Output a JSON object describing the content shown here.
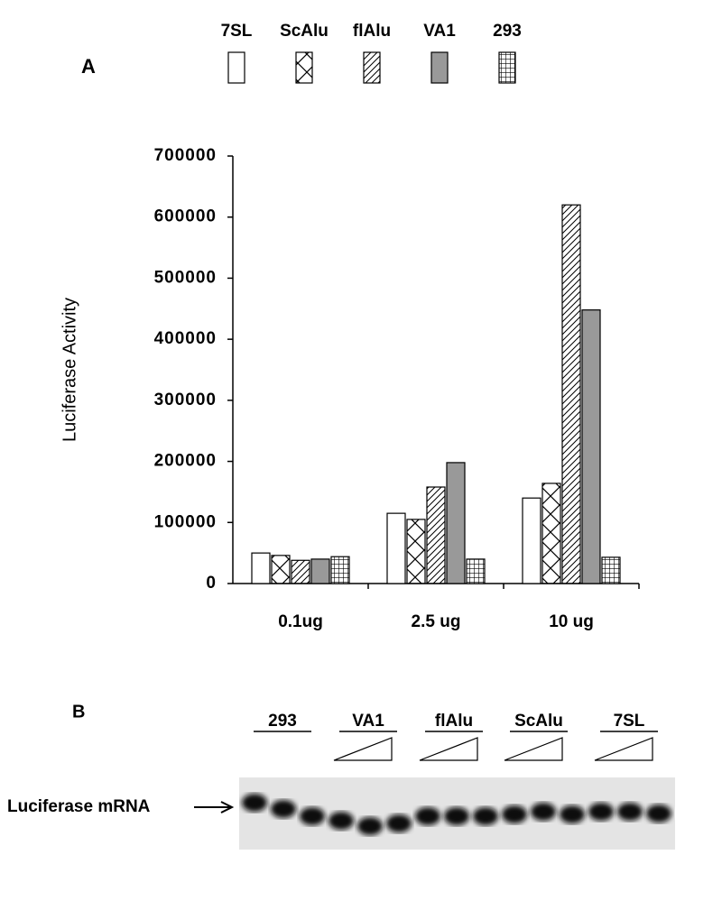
{
  "chart_data": {
    "type": "bar",
    "panel_label": "A",
    "ylabel": "Luciferase Activity",
    "categories": [
      "0.1ug",
      "2.5 ug",
      "10 ug"
    ],
    "series": [
      {
        "name": "7SL",
        "color": "#ffffff",
        "pattern": "none",
        "values": [
          50000,
          115000,
          140000
        ]
      },
      {
        "name": "ScAlu",
        "color": "#ffffff",
        "pattern": "cross",
        "values": [
          46000,
          105000,
          164000
        ]
      },
      {
        "name": "flAlu",
        "color": "#ffffff",
        "pattern": "diagonal",
        "values": [
          38000,
          158000,
          620000
        ]
      },
      {
        "name": "VA1",
        "color": "#999999",
        "pattern": "none",
        "values": [
          40000,
          198000,
          448000
        ]
      },
      {
        "name": "293",
        "color": "#ffffff",
        "pattern": "grid",
        "values": [
          44000,
          40000,
          43000
        ]
      }
    ],
    "ylim": [
      0,
      700000
    ],
    "yticks": [
      0,
      100000,
      200000,
      300000,
      400000,
      500000,
      600000,
      700000
    ],
    "grid": false
  },
  "gel": {
    "panel_label": "B",
    "band_label": "Luciferase mRNA",
    "lanes": [
      "293",
      "VA1",
      "flAlu",
      "ScAlu",
      "7SL"
    ]
  }
}
